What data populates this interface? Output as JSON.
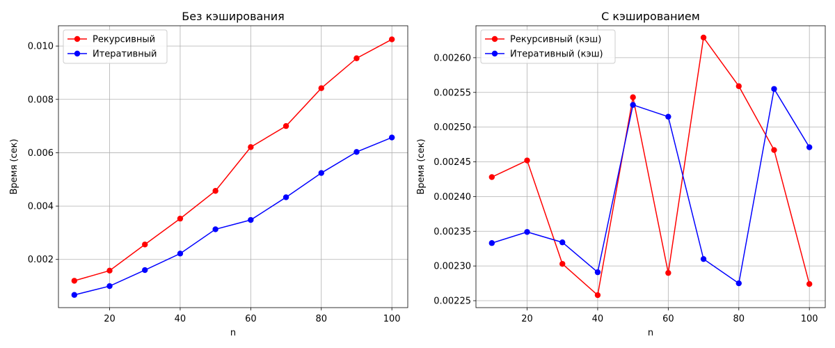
{
  "chart_data": [
    {
      "type": "line",
      "title": "Без кэширования",
      "xlabel": "n",
      "ylabel": "Время (сек)",
      "x": [
        10,
        20,
        30,
        40,
        50,
        60,
        70,
        80,
        90,
        100
      ],
      "xlim": [
        5.5,
        104.5
      ],
      "ylim": [
        0.000193,
        0.01076
      ],
      "xticks": [
        20,
        40,
        60,
        80,
        100
      ],
      "xtick_labels": [
        "20",
        "40",
        "60",
        "80",
        "100"
      ],
      "yticks": [
        0.002,
        0.004,
        0.006,
        0.008,
        0.01
      ],
      "ytick_labels": [
        "0.002",
        "0.004",
        "0.006",
        "0.008",
        "0.010"
      ],
      "grid": true,
      "legend_position": "top-left",
      "series": [
        {
          "name": "Рекурсивный",
          "color": "#ff0000",
          "values": [
            0.0012,
            0.00158,
            0.00256,
            0.00353,
            0.00457,
            0.00621,
            0.007,
            0.00842,
            0.00954,
            0.01025
          ]
        },
        {
          "name": "Итеративный",
          "color": "#0000ff",
          "values": [
            0.00067,
            0.001,
            0.0016,
            0.00222,
            0.00313,
            0.00348,
            0.00433,
            0.00524,
            0.00603,
            0.00657
          ]
        }
      ]
    },
    {
      "type": "line",
      "title": "С кэшированием",
      "xlabel": "n",
      "ylabel": "Время (сек)",
      "x": [
        10,
        20,
        30,
        40,
        50,
        60,
        70,
        80,
        90,
        100
      ],
      "xlim": [
        5.5,
        104.5
      ],
      "ylim": [
        0.00224,
        0.002646
      ],
      "xticks": [
        20,
        40,
        60,
        80,
        100
      ],
      "xtick_labels": [
        "20",
        "40",
        "60",
        "80",
        "100"
      ],
      "yticks": [
        0.00225,
        0.0023,
        0.00235,
        0.0024,
        0.00245,
        0.0025,
        0.00255,
        0.0026
      ],
      "ytick_labels": [
        "0.00225",
        "0.00230",
        "0.00235",
        "0.00240",
        "0.00245",
        "0.00250",
        "0.00255",
        "0.00260"
      ],
      "grid": true,
      "legend_position": "top-left",
      "series": [
        {
          "name": "Рекурсивный (кэш)",
          "color": "#ff0000",
          "values": [
            0.002428,
            0.002452,
            0.002303,
            0.002258,
            0.002543,
            0.00229,
            0.002629,
            0.002559,
            0.002467,
            0.002274
          ]
        },
        {
          "name": "Итеративный (кэш)",
          "color": "#0000ff",
          "values": [
            0.002333,
            0.002349,
            0.002334,
            0.002291,
            0.002532,
            0.002515,
            0.00231,
            0.002275,
            0.002555,
            0.002471
          ]
        }
      ]
    }
  ]
}
